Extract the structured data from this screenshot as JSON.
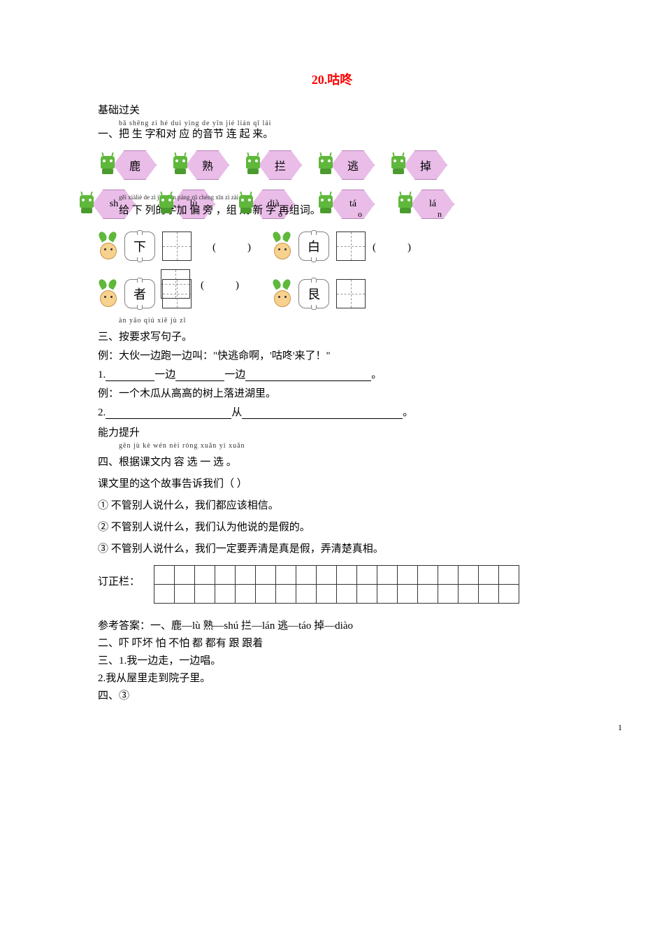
{
  "title": "20.咕咚",
  "basic_label": "基础过关",
  "q1": {
    "pinyin": "bǎ shēng zì hé duì yìng de yīn jié lián qǐ lái",
    "text": "一、把 生 字和对 应 的音节 连 起 来。",
    "chars": [
      "鹿",
      "熟",
      "拦",
      "逃",
      "掉"
    ],
    "pinyins": [
      "sh",
      "lù",
      "dià",
      "tá",
      "lá"
    ],
    "pinyin_tails": [
      "",
      "",
      "o",
      "o",
      "n"
    ]
  },
  "q2": {
    "overlay_pinyin": "gěi xiàliè de zì jiā piān páng     zǔ chéng xīn zì zài zǔ cí",
    "text": "给 下 列的字加 偏 旁 ，组 成  新 字 再组词。",
    "items": [
      {
        "char": "下"
      },
      {
        "char": "白"
      },
      {
        "char": "者"
      },
      {
        "char": "艮"
      }
    ]
  },
  "q3": {
    "pinyin": "àn yāo qiú xiě jù zǐ",
    "text": "三、按要求写句子。",
    "ex1": "例：大伙一边跑一边叫：\"快逃命啊，'咕咚'来了！\"",
    "line1_a": "1.",
    "line1_b": "一边",
    "line1_c": "一边",
    "line1_end": "。",
    "ex2": "例：一个木瓜从高高的树上落进湖里。",
    "line2_a": "2.",
    "line2_b": "从",
    "line2_end": "。"
  },
  "ability_label": "能力提升",
  "q4": {
    "pinyin": "gēn jù kè wén nèi róng xuǎn yì xuǎn",
    "text": "四、根据课文内 容  选 一 选 。",
    "question": "课文里的这个故事告诉我们（     ）",
    "choices": [
      "① 不管别人说什么，我们都应该相信。",
      "② 不管别人说什么，我们认为他说的是假的。",
      "③ 不管别人说什么，我们一定要弄清是真是假，弄清楚真相。"
    ]
  },
  "correction_label": "订正栏：",
  "correction_cols": 18,
  "answers": {
    "a1": "参考答案：一、鹿—lù 熟—shú 拦—lán 逃—táo  掉—diào",
    "a2": "二、吓  吓坏  怕 不怕   都 都有 跟 跟着",
    "a3": "三、1.我一边走，一边唱。",
    "a3b": "2.我从屋里走到院子里。",
    "a4": "四、③"
  },
  "pagenum": "1",
  "robot_label": "LOGO"
}
